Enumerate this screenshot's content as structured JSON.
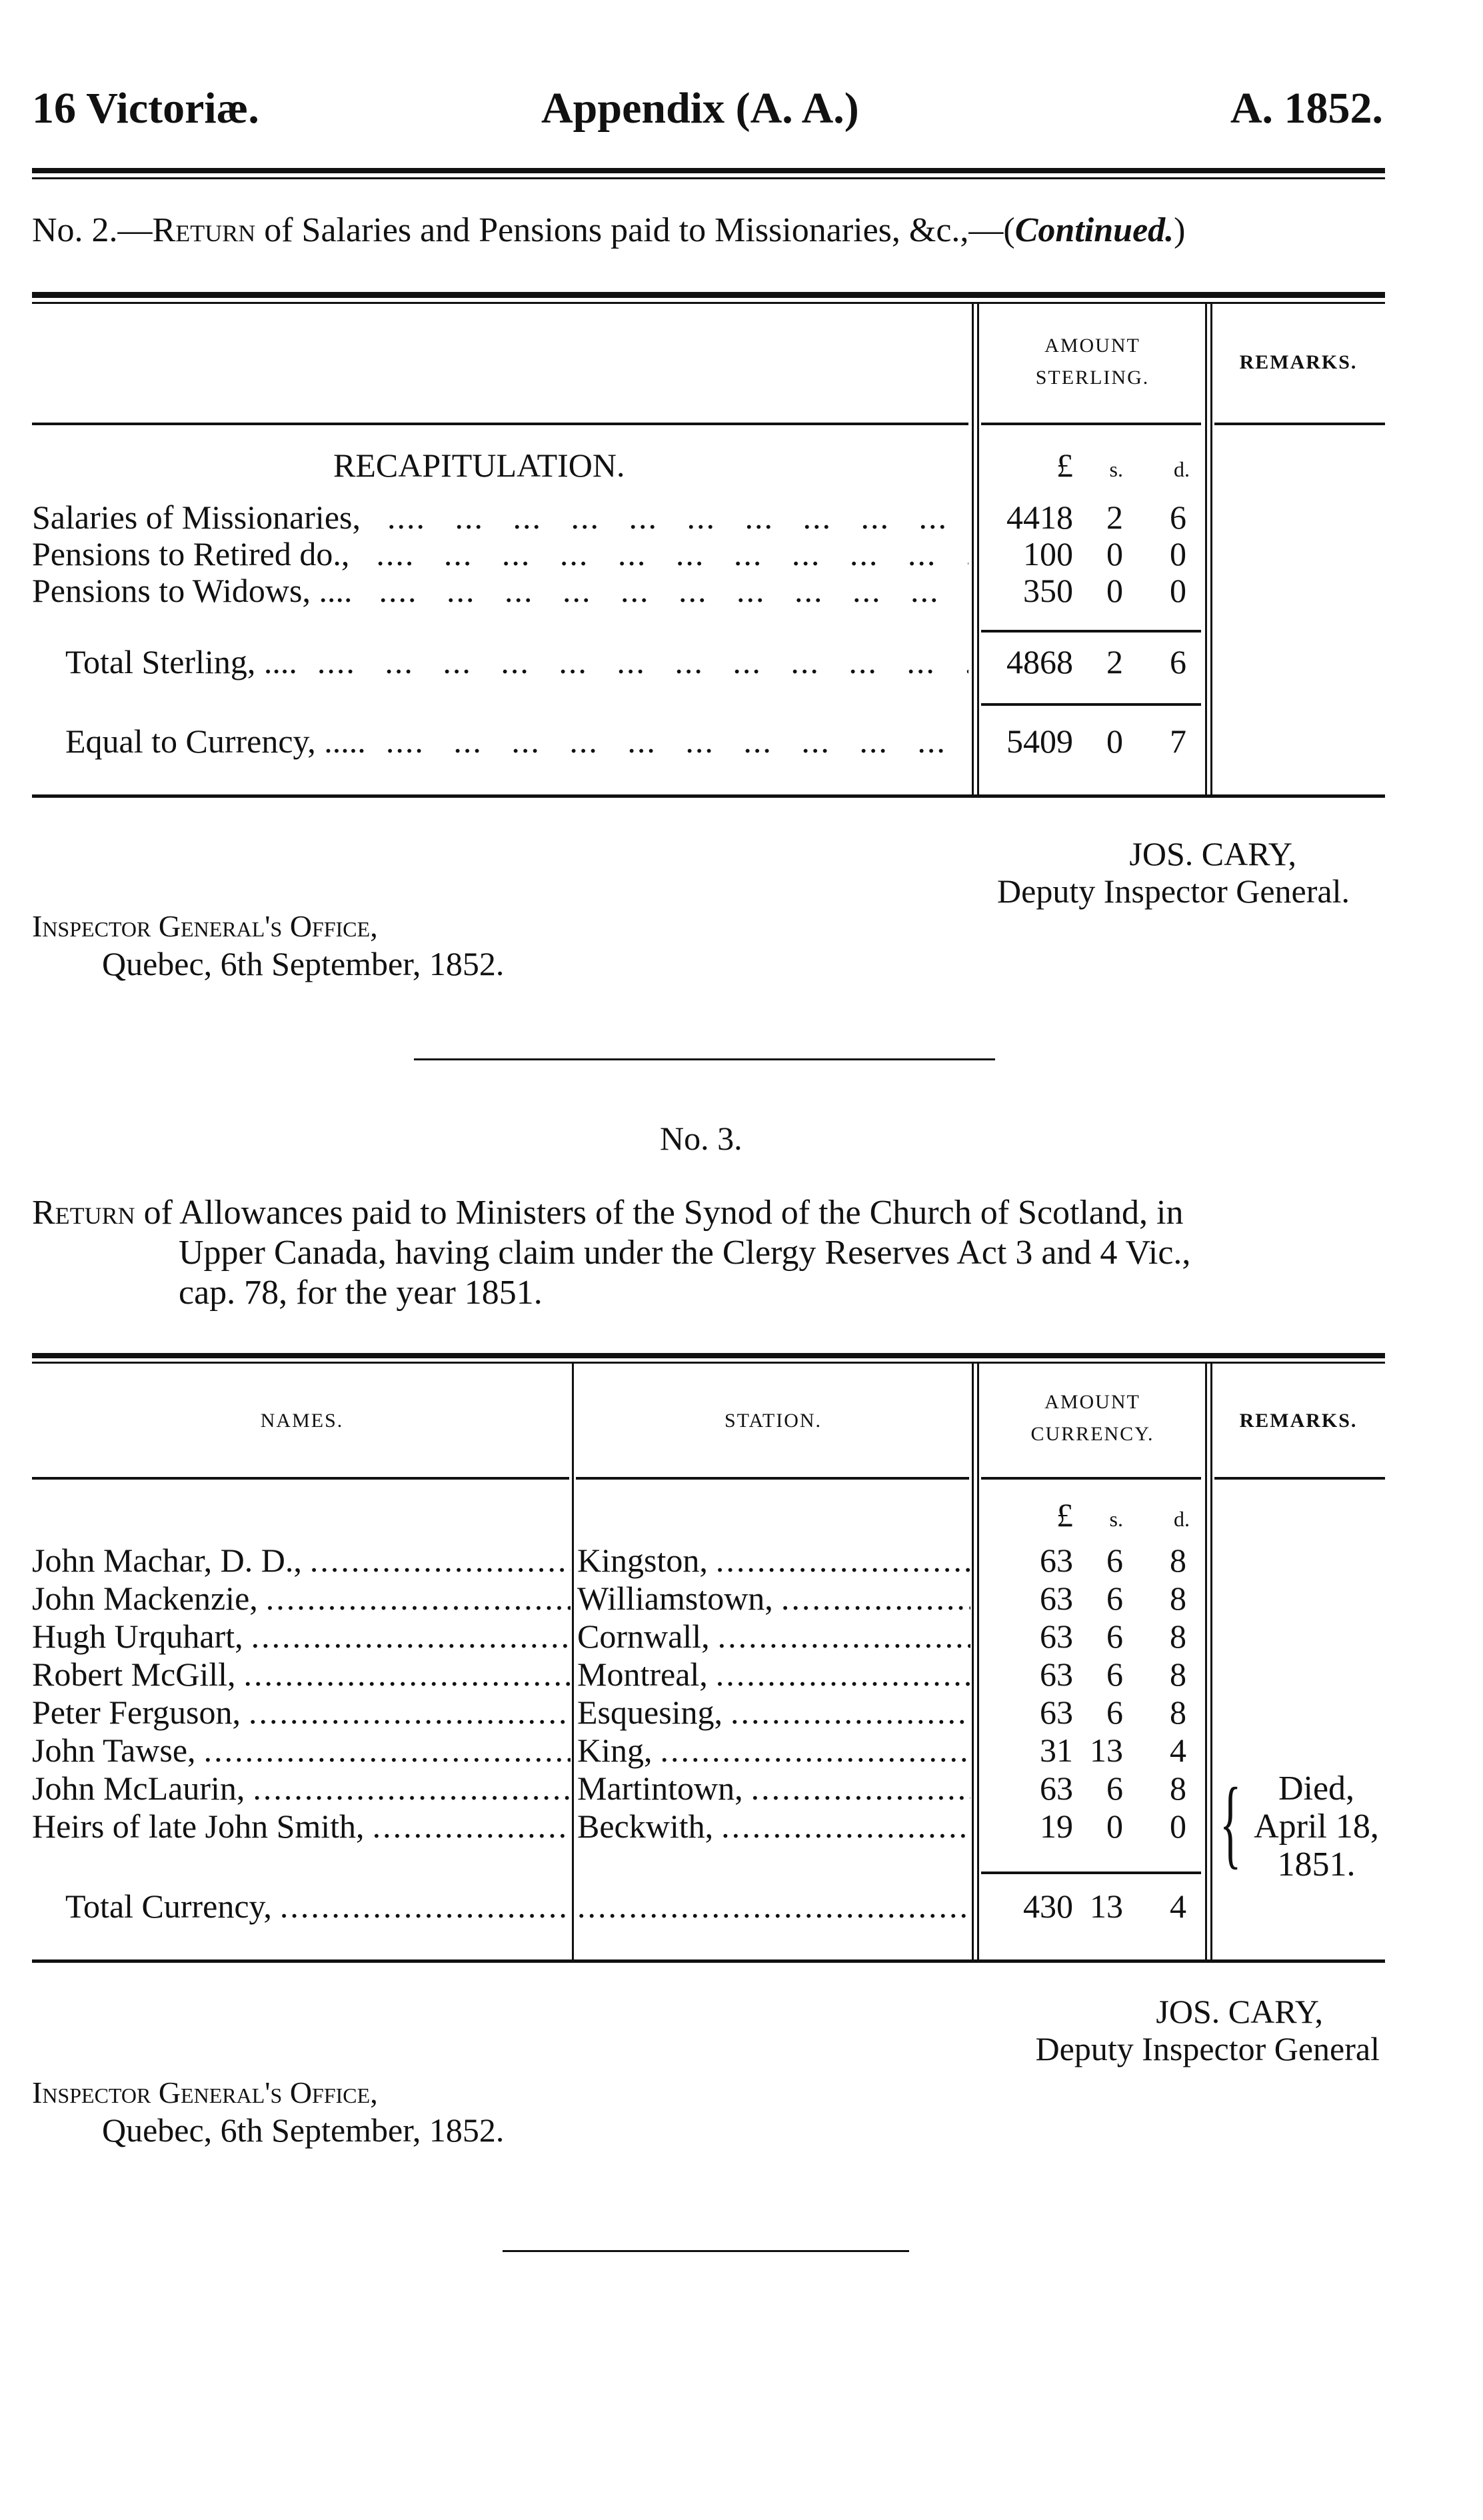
{
  "header": {
    "left": "16 Victoriæ.",
    "center": "Appendix (A. A.)",
    "right": "A. 1852."
  },
  "return2": {
    "title_prefix": "No. 2.—",
    "title_sc": "Return",
    "title_rest": " of Salaries and Pensions paid to Missionaries, &c.,—(",
    "title_continued": "Continued.",
    "title_end": ")",
    "col_amount_1": "AMOUNT",
    "col_amount_2": "STERLING.",
    "col_remarks": "REMARKS.",
    "recap": "RECAPITULATION.",
    "units": {
      "l": "£",
      "s": "s.",
      "d": "d."
    },
    "rows": [
      {
        "label": "Salaries of Missionaries,",
        "l": "4418",
        "s": "2",
        "d": "6"
      },
      {
        "label": "Pensions to Retired do.,",
        "l": "100",
        "s": "0",
        "d": "0"
      },
      {
        "label": "Pensions to Widows, ....",
        "l": "350",
        "s": "0",
        "d": "0"
      }
    ],
    "total": {
      "label": "Total Sterling, ....",
      "l": "4868",
      "s": "2",
      "d": "6"
    },
    "currency": {
      "label": "Equal to Currency, .....",
      "l": "5409",
      "s": "0",
      "d": "7"
    },
    "signature": {
      "name": "JOS. CARY,",
      "title": "Deputy Inspector General."
    },
    "office": {
      "line1": "Inspector General's Office,",
      "line2": "Quebec, 6th September, 1852."
    }
  },
  "return3": {
    "number": "No. 3.",
    "title_sc": "Return",
    "title_line1": " of Allowances paid to Ministers of the Synod of the Church of Scotland, in",
    "title_line2": "Upper Canada, having claim under the  Clergy Reserves Act 3 and 4 Vic.,",
    "title_line3": "cap. 78, for the year 1851.",
    "col_names": "NAMES.",
    "col_station": "STATION.",
    "col_amount_1": "AMOUNT",
    "col_amount_2": "CURRENCY.",
    "col_remarks": "REMARKS.",
    "units": {
      "l": "£",
      "s": "s.",
      "d": "d."
    },
    "rows": [
      {
        "name": "John Machar, D. D.,",
        "station": "Kingston,",
        "l": "63",
        "s": "6",
        "d": "8"
      },
      {
        "name": "John Mackenzie,",
        "station": "Williamstown,",
        "l": "63",
        "s": "6",
        "d": "8"
      },
      {
        "name": "Hugh Urquhart,",
        "station": "Cornwall,",
        "l": "63",
        "s": "6",
        "d": "8"
      },
      {
        "name": "Robert McGill,",
        "station": "Montreal,",
        "l": "63",
        "s": "6",
        "d": "8"
      },
      {
        "name": "Peter Ferguson,",
        "station": "Esquesing,",
        "l": "63",
        "s": "6",
        "d": "8"
      },
      {
        "name": "John Tawse,",
        "station": "King,",
        "l": "31",
        "s": "13",
        "d": "4"
      },
      {
        "name": "John McLaurin,",
        "station": "Martintown,",
        "l": "63",
        "s": "6",
        "d": "8"
      },
      {
        "name": "Heirs of late John Smith,",
        "station": "Beckwith,",
        "l": "19",
        "s": "0",
        "d": "0"
      }
    ],
    "total": {
      "label": "Total Currency,",
      "l": "430",
      "s": "13",
      "d": "4"
    },
    "remark": {
      "line1": "Died,",
      "line2": "April 18,",
      "line3": "1851."
    },
    "signature": {
      "name": "JOS. CARY,",
      "title": "Deputy Inspector General"
    },
    "office": {
      "line1": "Inspector General's Office,",
      "line2": "Quebec, 6th September, 1852."
    }
  }
}
